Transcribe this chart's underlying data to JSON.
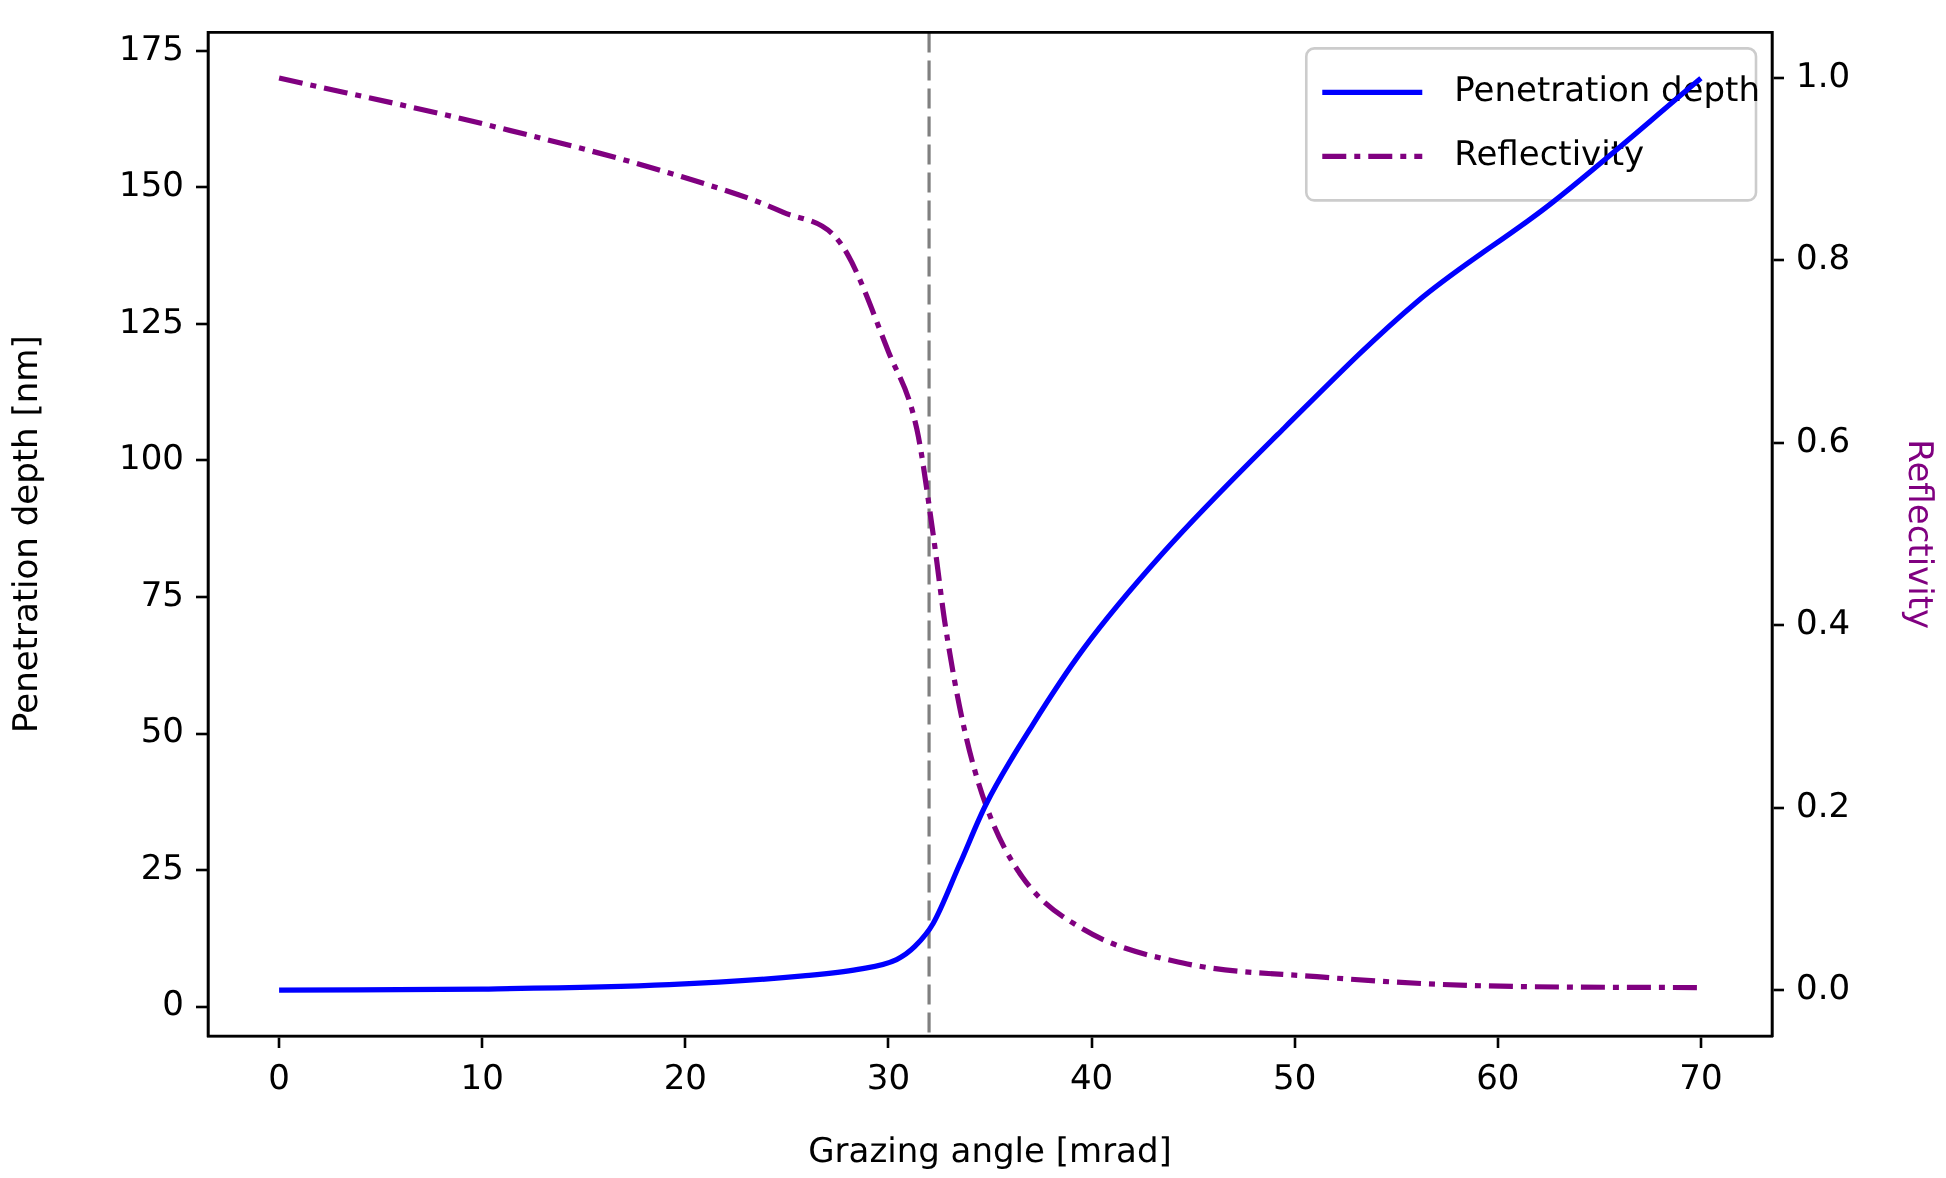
{
  "chart_data": {
    "type": "line",
    "xlabel": "Grazing angle [mrad]",
    "ylabel": "Penetration depth [nm]",
    "y2label": "Reflectivity",
    "xlim": [
      -3.5,
      73.5
    ],
    "xticks": [
      0,
      10,
      20,
      30,
      40,
      50,
      60,
      70
    ],
    "ylim": [
      -5.4,
      178.4
    ],
    "yticks": [
      0,
      25,
      50,
      75,
      100,
      125,
      150,
      175
    ],
    "y2lim": [
      -0.05,
      1.05
    ],
    "y2ticks": [
      {
        "value": 0,
        "label": "0.0"
      },
      {
        "value": 0.2,
        "label": "0.2"
      },
      {
        "value": 0.4,
        "label": "0.4"
      },
      {
        "value": 0.6,
        "label": "0.6"
      },
      {
        "value": 0.8,
        "label": "0.8"
      },
      {
        "value": 1,
        "label": "1.0"
      }
    ],
    "legend": "top right",
    "marker": "none",
    "ref_lines": [
      {
        "axis": "x",
        "value": 32,
        "color": "#808080",
        "line_style": "dashed"
      }
    ],
    "series": [
      {
        "name": "Penetration depth",
        "color": "#0000ff",
        "line_style": "solid",
        "x": [
          0,
          10,
          19.2,
          25.8,
          28.5,
          30.4,
          31.3,
          32.2,
          33.5,
          34.8,
          37.1,
          39.6,
          43.5,
          49.5,
          56,
          62.6,
          70
        ],
        "values": [
          3,
          3.2,
          4,
          5.6,
          6.8,
          8.6,
          11,
          15.2,
          26,
          37,
          51.6,
          65.5,
          83,
          106,
          129,
          147,
          170
        ]
      },
      {
        "name": "Reflectivity",
        "color": "#800080",
        "line_style": "dashdot",
        "axis": "y2",
        "x": [
          0,
          10,
          19.8,
          24.8,
          27.7,
          30,
          31.4,
          32.2,
          32.8,
          33.7,
          34.8,
          36.6,
          39.6,
          44.5,
          51.1,
          59.3,
          70
        ],
        "values": [
          1.0,
          0.95,
          0.892,
          0.853,
          0.817,
          0.7,
          0.615,
          0.5,
          0.4,
          0.29,
          0.203,
          0.124,
          0.067,
          0.03,
          0.015,
          0.005,
          0.003
        ]
      }
    ]
  }
}
